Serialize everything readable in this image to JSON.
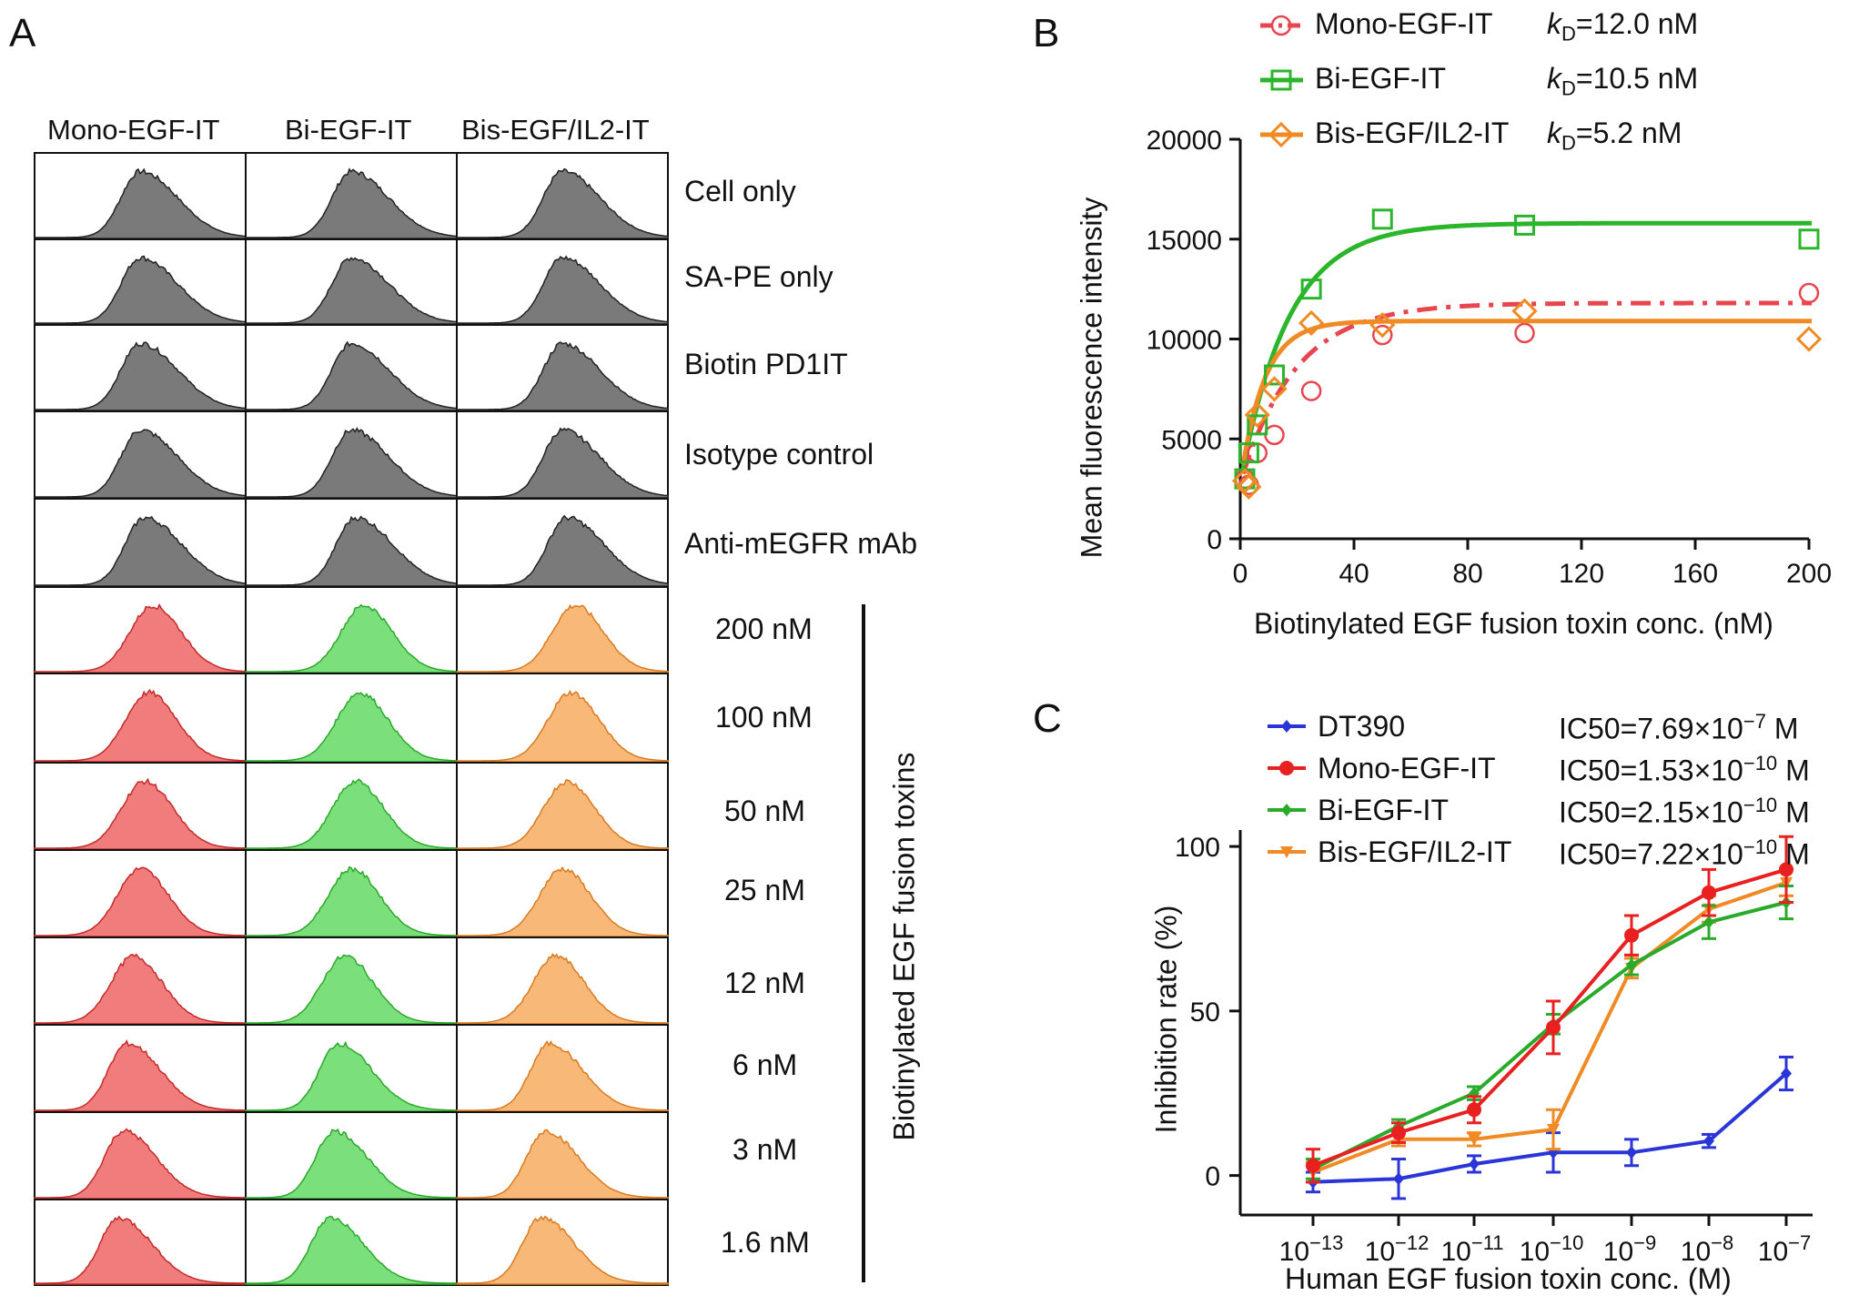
{
  "chart_data": [
    {
      "panel": "A",
      "type": "histogram-grid",
      "column_headers": [
        "Mono-EGF-IT",
        "Bi-EGF-IT",
        "Bis-EGF/IL2-IT"
      ],
      "row_labels": [
        "Cell only",
        "SA-PE only",
        "Biotin PD1IT",
        "Isotype control",
        "Anti-mEGFR mAb",
        "200 nM",
        "100 nM",
        "50 nM",
        "25 nM",
        "12 nM",
        "6 nM",
        "3 nM",
        "1.6 nM"
      ],
      "group_label": "Biotinylated EGF fusion toxins",
      "control_rows": 5,
      "colors": {
        "control": "#7a7a7a",
        "mono": "#f07c7c",
        "bi": "#7be07b",
        "bis": "#f8b878",
        "control_line": "#222222",
        "mono_line": "#c42a2a",
        "bi_line": "#2aa82a",
        "bis_line": "#d97a20"
      },
      "peak_shift": [
        0.5,
        0.5,
        0.5,
        0.5,
        0.52,
        0.56,
        0.54,
        0.52,
        0.5,
        0.47,
        0.44,
        0.42,
        0.4
      ]
    },
    {
      "panel": "B",
      "type": "scatter",
      "title": "",
      "xlabel": "Biotinylated EGF fusion toxin conc. (nM)",
      "ylabel": "Mean fluorescence intensity",
      "xlim": [
        0,
        200
      ],
      "ylim": [
        0,
        20000
      ],
      "xticks": [
        "0",
        "40",
        "80",
        "120",
        "160",
        "200"
      ],
      "yticks": [
        "0",
        "5000",
        "10000",
        "15000",
        "20000"
      ],
      "xtick_values": [
        0,
        40,
        80,
        120,
        160,
        200
      ],
      "ytick_values": [
        0,
        5000,
        10000,
        15000,
        20000
      ],
      "series": [
        {
          "name": "Mono-EGF-IT",
          "kd_label": "=12.0 nM",
          "color": "#e8464e",
          "marker": "circle",
          "line": "dashdot",
          "x": [
            1.6,
            3,
            6,
            12,
            25,
            50,
            100,
            200
          ],
          "y": [
            3000,
            2700,
            4300,
            5200,
            7400,
            10200,
            10300,
            12300
          ],
          "fit": {
            "bmax": 11800,
            "kd": 12.0,
            "base": 2800
          }
        },
        {
          "name": "Bi-EGF-IT",
          "kd_label": "=10.5 nM",
          "color": "#2bb52b",
          "marker": "square",
          "line": "solid",
          "x": [
            1.6,
            3,
            6,
            12,
            25,
            50,
            100,
            200
          ],
          "y": [
            3000,
            4300,
            5700,
            8200,
            12500,
            16000,
            15700,
            15000
          ],
          "fit": {
            "bmax": 15800,
            "kd": 10.5,
            "base": 2800
          }
        },
        {
          "name": "Bis-EGF/IL2-IT",
          "kd_label": "=5.2 nM",
          "color": "#f08a24",
          "marker": "diamond",
          "line": "solid",
          "x": [
            1.6,
            3,
            6,
            12,
            25,
            50,
            100,
            200
          ],
          "y": [
            2900,
            2600,
            6200,
            7500,
            10800,
            10700,
            11400,
            10000
          ],
          "fit": {
            "bmax": 10900,
            "kd": 5.2,
            "base": 2800
          }
        }
      ],
      "legend_prefix": "k",
      "legend_sub": "D"
    },
    {
      "panel": "C",
      "type": "line",
      "xlabel": "Human EGF fusion toxin conc. (M)",
      "ylabel": "Inhibition rate (%)",
      "x_exponents": [
        -13,
        -12,
        -11,
        -10,
        -9,
        -8,
        -7
      ],
      "xtick_base": "10",
      "xtick_exps": [
        "−13",
        "−12",
        "−11",
        "−10",
        "−9",
        "−8",
        "−7"
      ],
      "ylim": [
        -12,
        105
      ],
      "yticks": [
        "0",
        "50",
        "100"
      ],
      "ytick_values": [
        0,
        50,
        100
      ],
      "series": [
        {
          "name": "DT390",
          "ic50_label": "IC50=7.69×10",
          "ic50_exp": "−7",
          "ic50_unit": " M",
          "color": "#2a35d8",
          "marker": "diamond",
          "y": [
            -2,
            -1,
            3.5,
            7,
            7,
            10.5,
            31
          ],
          "err": [
            3,
            6,
            2.5,
            6,
            4,
            2,
            5
          ]
        },
        {
          "name": "Mono-EGF-IT",
          "ic50_label": "IC50=1.53×10",
          "ic50_exp": "−10",
          "ic50_unit": " M",
          "color": "#e82020",
          "marker": "circle",
          "y": [
            3,
            13,
            20,
            45,
            73,
            86,
            93
          ],
          "err": [
            5,
            3,
            4,
            8,
            6,
            7,
            10
          ]
        },
        {
          "name": "Bi-EGF-IT",
          "ic50_label": "IC50=2.15×10",
          "ic50_exp": "−10",
          "ic50_unit": " M",
          "color": "#2aaa2a",
          "marker": "diamond",
          "y": [
            2,
            15,
            25,
            46,
            64,
            77,
            83
          ],
          "err": [
            3,
            2,
            2,
            3,
            3,
            5,
            5
          ]
        },
        {
          "name": "Bis-EGF/IL2-IT",
          "ic50_label": "IC50=7.22×10",
          "ic50_exp": "−10",
          "ic50_unit": " M",
          "color": "#f08a24",
          "marker": "triangle-down",
          "y": [
            1,
            11,
            11,
            14,
            63,
            81,
            89
          ],
          "err": [
            3,
            2,
            2,
            6,
            3,
            4,
            4
          ]
        }
      ]
    }
  ],
  "panels": {
    "a": "A",
    "b": "B",
    "c": "C"
  }
}
